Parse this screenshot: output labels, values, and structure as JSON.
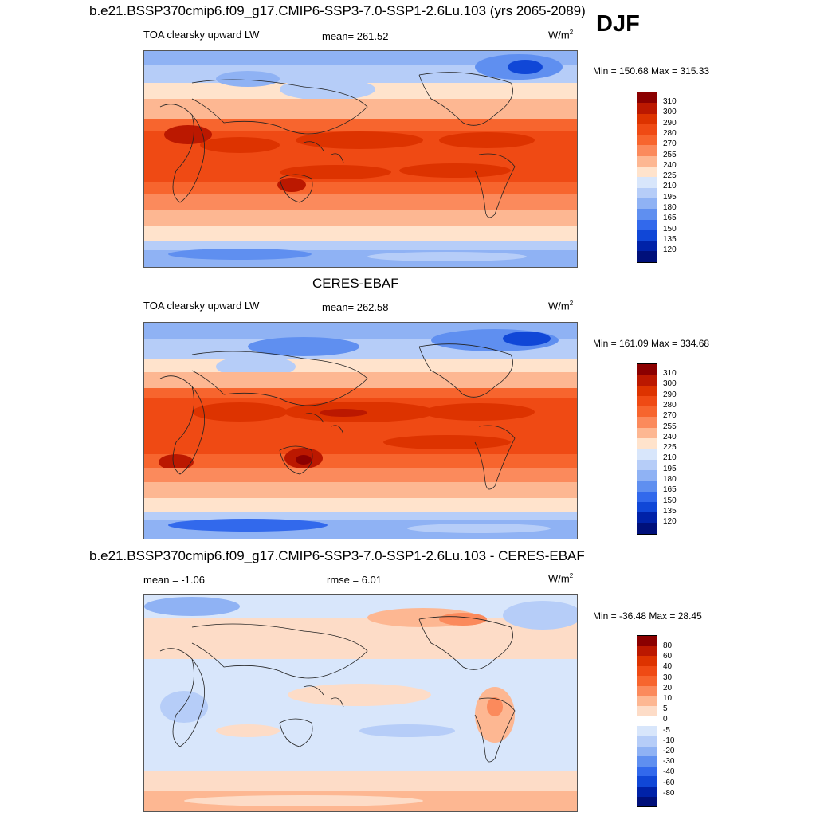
{
  "season": "DJF",
  "panels": [
    {
      "id": "model",
      "header": "b.e21.BSSP370cmip6.f09_g17.CMIP6-SSP3-7.0-SSP1-2.6Lu.103 (yrs 2065-2089)",
      "left_label": "TOA clearsky upward LW",
      "center_label": "mean= 261.52",
      "units_base": "W/m",
      "units_exp": "2",
      "minmax": "Min = 150.68 Max = 315.33",
      "colorbar_levels": [
        "310",
        "300",
        "290",
        "280",
        "270",
        "255",
        "240",
        "225",
        "210",
        "195",
        "180",
        "165",
        "150",
        "135",
        "120"
      ]
    },
    {
      "id": "obs",
      "header": "CERES-EBAF",
      "left_label": "TOA clearsky upward LW",
      "center_label": "mean= 262.58",
      "units_base": "W/m",
      "units_exp": "2",
      "minmax": "Min = 161.09 Max = 334.68",
      "colorbar_levels": [
        "310",
        "300",
        "290",
        "280",
        "270",
        "255",
        "240",
        "225",
        "210",
        "195",
        "180",
        "165",
        "150",
        "135",
        "120"
      ]
    },
    {
      "id": "diff",
      "header": "b.e21.BSSP370cmip6.f09_g17.CMIP6-SSP3-7.0-SSP1-2.6Lu.103 - CERES-EBAF",
      "left_label": "mean =  -1.06",
      "center_label": "rmse =    6.01",
      "units_base": "W/m",
      "units_exp": "2",
      "minmax": "Min = -36.48 Max =  28.45",
      "colorbar_levels": [
        "80",
        "60",
        "40",
        "30",
        "20",
        "10",
        "5",
        "0",
        "-5",
        "-10",
        "-20",
        "-30",
        "-40",
        "-60",
        "-80"
      ]
    }
  ],
  "colors": {
    "abs_scale": [
      "#8b0000",
      "#bb1800",
      "#dd3300",
      "#ef4a14",
      "#f7652e",
      "#fb8a5c",
      "#fdb792",
      "#ffe3cc",
      "#d8e6fb",
      "#b6cdf8",
      "#8fb2f4",
      "#5f8ff0",
      "#3269ec",
      "#1047d7",
      "#0022a8",
      "#00107a"
    ],
    "diff_scale": [
      "#8b0000",
      "#bb1800",
      "#dd3300",
      "#ef4a14",
      "#f7652e",
      "#fb8a5c",
      "#fdb792",
      "#fddcc7",
      "#ffffff",
      "#d8e6fb",
      "#b6cdf8",
      "#8fb2f4",
      "#5f8ff0",
      "#3269ec",
      "#1047d7",
      "#0022a8",
      "#00107a"
    ]
  }
}
